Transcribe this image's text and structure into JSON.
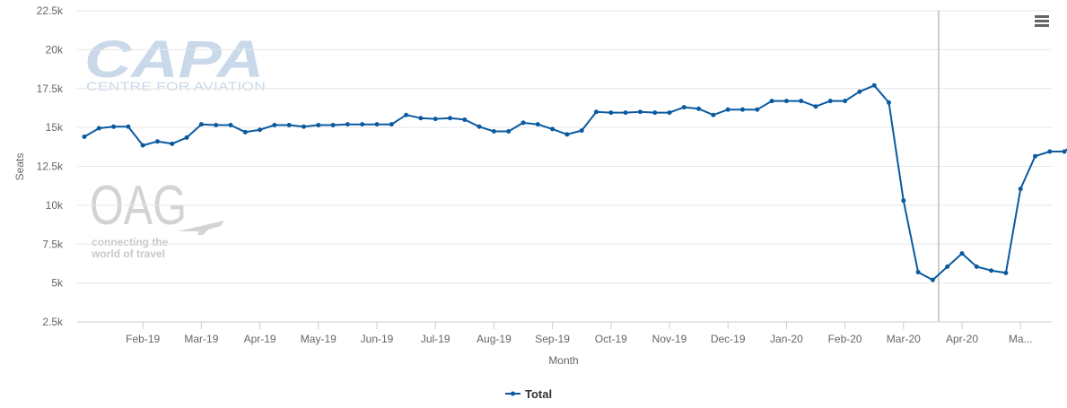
{
  "chart_data": {
    "type": "line",
    "title": "",
    "xlabel": "Month",
    "ylabel": "Seats",
    "ylim": [
      2500,
      22500
    ],
    "y_ticks": [
      "2.5k",
      "5k",
      "7.5k",
      "10k",
      "12.5k",
      "15k",
      "17.5k",
      "20k",
      "22.5k"
    ],
    "y_tick_values": [
      2500,
      5000,
      7500,
      10000,
      12500,
      15000,
      17500,
      20000,
      22500
    ],
    "x_tick_labels": [
      "Feb-19",
      "Mar-19",
      "Apr-19",
      "May-19",
      "Jun-19",
      "Jul-19",
      "Aug-19",
      "Sep-19",
      "Oct-19",
      "Nov-19",
      "Dec-19",
      "Jan-20",
      "Feb-20",
      "Mar-20",
      "Apr-20",
      "Ma..."
    ],
    "x_tick_weeks": [
      4,
      8,
      12,
      16,
      20,
      24,
      28,
      32,
      36,
      40,
      44,
      48,
      52,
      56,
      60,
      64
    ],
    "current_week_marker": 58.4,
    "legend_position": "bottom-center",
    "grid": true,
    "series": [
      {
        "name": "Total",
        "color": "#0a5aa0",
        "values": [
          14400,
          14950,
          15050,
          15050,
          13850,
          14100,
          13950,
          14350,
          15200,
          15150,
          15150,
          14700,
          14850,
          15150,
          15150,
          15050,
          15150,
          15150,
          15200,
          15200,
          15200,
          15200,
          15800,
          15600,
          15550,
          15600,
          15500,
          15050,
          14750,
          14750,
          15300,
          15200,
          14900,
          14550,
          14800,
          16000,
          15950,
          15950,
          16000,
          15950,
          15950,
          16300,
          16200,
          15800,
          16150,
          16150,
          16150,
          16700,
          16700,
          16700,
          16350,
          16700,
          16700,
          17300,
          17700,
          16600,
          10300,
          5700,
          5200,
          6050,
          6900,
          6050,
          5800,
          5650,
          11050,
          13150,
          13450,
          13450,
          14250
        ]
      }
    ]
  },
  "watermarks": {
    "capa_logo": "CAPA",
    "capa_tagline": "CENTRE FOR AVIATION",
    "oag_logo": "OAG",
    "oag_tagline_1": "connecting the",
    "oag_tagline_2": "world of travel"
  },
  "menu": {
    "icon": "hamburger-menu-icon"
  }
}
